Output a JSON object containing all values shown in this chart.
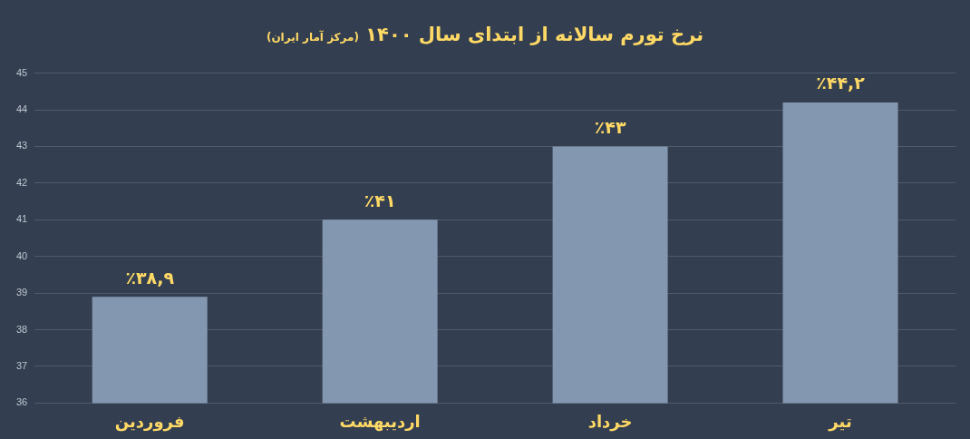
{
  "chart_data": {
    "type": "bar",
    "title": "نرخ تورم سالانه از ابتدای سال ۱۴۰۰",
    "subtitle": "(مرکز آمار ایران)",
    "categories": [
      "فروردین",
      "اردیبهشت",
      "خرداد",
      "تیر"
    ],
    "values": [
      38.9,
      41,
      43,
      44.2
    ],
    "value_labels": [
      "٪۳۸,۹",
      "٪۴۱",
      "٪۴۳",
      "٪۴۴,۲"
    ],
    "color": "#8497b0",
    "ylim": [
      36,
      45
    ],
    "yticks": [
      36,
      37,
      38,
      39,
      40,
      41,
      42,
      43,
      44,
      45
    ],
    "grid": "y",
    "legend": false
  }
}
